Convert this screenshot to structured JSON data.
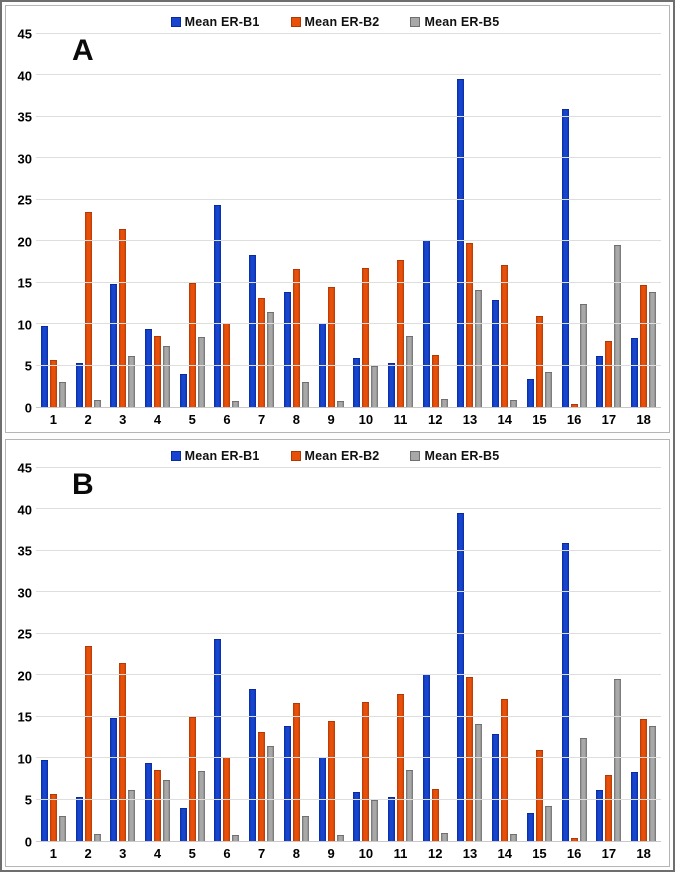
{
  "figure": {
    "background_color": "#ffffff",
    "outer_border_color": "#6e6e6e",
    "panel_border_color": "#b5b5b5",
    "gridline_color": "#dedede"
  },
  "chart_data": [
    {
      "type": "bar",
      "panel_label": "A",
      "title": "",
      "xlabel": "",
      "ylabel": "",
      "ylim": [
        0,
        45
      ],
      "ytick_step": 5,
      "grid": true,
      "legend_position": "top-center",
      "categories": [
        "1",
        "2",
        "3",
        "4",
        "5",
        "6",
        "7",
        "8",
        "9",
        "10",
        "11",
        "12",
        "13",
        "14",
        "15",
        "16",
        "17",
        "18"
      ],
      "series": [
        {
          "name": "Mean ER-B1",
          "fill": "#1745ce",
          "edge": "#0a2aa0",
          "values": [
            9.7,
            5.2,
            14.7,
            9.3,
            3.9,
            24.3,
            18.2,
            13.7,
            10.0,
            5.8,
            5.2,
            20.0,
            39.5,
            12.8,
            3.2,
            35.8,
            6.0,
            8.2
          ]
        },
        {
          "name": "Mean ER-B2",
          "fill": "#e8500a",
          "edge": "#b03a06",
          "values": [
            5.6,
            23.4,
            21.4,
            8.5,
            14.8,
            10.0,
            13.0,
            16.5,
            14.4,
            16.7,
            17.6,
            6.2,
            19.7,
            17.0,
            10.9,
            0.3,
            7.8,
            14.6
          ]
        },
        {
          "name": "Mean ER-B5",
          "fill": "#a8a8a8",
          "edge": "#6f6f6f",
          "values": [
            2.9,
            0.7,
            6.0,
            7.2,
            8.3,
            0.6,
            11.3,
            2.9,
            0.6,
            4.8,
            8.5,
            0.9,
            14.0,
            0.7,
            4.1,
            12.3,
            19.4,
            13.8
          ]
        }
      ]
    },
    {
      "type": "bar",
      "panel_label": "B",
      "title": "",
      "xlabel": "",
      "ylabel": "",
      "ylim": [
        0,
        45
      ],
      "ytick_step": 5,
      "grid": true,
      "legend_position": "top-center",
      "categories": [
        "1",
        "2",
        "3",
        "4",
        "5",
        "6",
        "7",
        "8",
        "9",
        "10",
        "11",
        "12",
        "13",
        "14",
        "15",
        "16",
        "17",
        "18"
      ],
      "series": [
        {
          "name": "Mean ER-B1",
          "fill": "#1745ce",
          "edge": "#0a2aa0",
          "values": [
            9.7,
            5.2,
            14.7,
            9.3,
            3.9,
            24.3,
            18.2,
            13.7,
            10.0,
            5.8,
            5.2,
            20.0,
            39.5,
            12.8,
            3.2,
            35.8,
            6.0,
            8.2
          ]
        },
        {
          "name": "Mean ER-B2",
          "fill": "#e8500a",
          "edge": "#b03a06",
          "values": [
            5.6,
            23.4,
            21.4,
            8.5,
            14.8,
            10.0,
            13.0,
            16.5,
            14.4,
            16.7,
            17.6,
            6.2,
            19.7,
            17.0,
            10.9,
            0.3,
            7.8,
            14.6
          ]
        },
        {
          "name": "Mean ER-B5",
          "fill": "#a8a8a8",
          "edge": "#6f6f6f",
          "values": [
            2.9,
            0.7,
            6.0,
            7.2,
            8.3,
            0.6,
            11.3,
            2.9,
            0.6,
            4.8,
            8.5,
            0.9,
            14.0,
            0.7,
            4.1,
            12.3,
            19.4,
            13.8
          ]
        }
      ]
    }
  ]
}
